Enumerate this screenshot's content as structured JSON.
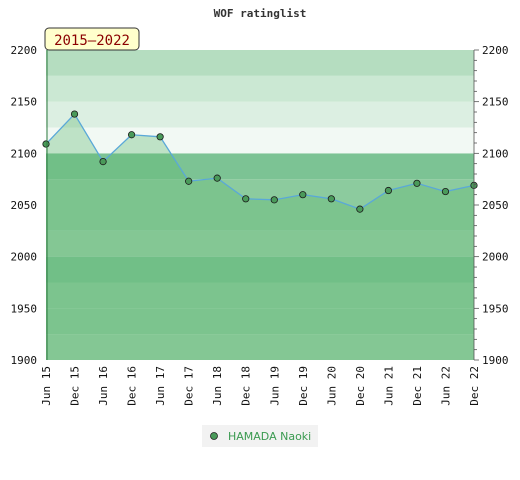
{
  "chart_data": {
    "type": "line",
    "title": "WOF ratinglist",
    "period_label": "2015–2022",
    "categories": [
      "Jun 15",
      "Dec 15",
      "Jun 16",
      "Dec 16",
      "Jun 17",
      "Dec 17",
      "Jun 18",
      "Dec 18",
      "Jun 19",
      "Dec 19",
      "Jun 20",
      "Dec 20",
      "Jun 21",
      "Dec 21",
      "Jun 22",
      "Dec 22"
    ],
    "series": [
      {
        "name": "HAMADA Naoki",
        "values": [
          2109,
          2138,
          2092,
          2118,
          2116,
          2073,
          2076,
          2056,
          2055,
          2060,
          2056,
          2046,
          2064,
          2071,
          2063,
          2069
        ]
      }
    ],
    "ylim": [
      1900,
      2200
    ],
    "yticks": [
      "1900",
      "1950",
      "2000",
      "2050",
      "2100",
      "2150",
      "2200"
    ],
    "legend_position": "bottom-center",
    "colors": {
      "line": "#5aa8d8",
      "area": "#5fb870",
      "marker": "#4a9a5a",
      "legend_text": "#3a9a50",
      "badge_fill": "#ffffcc"
    }
  }
}
